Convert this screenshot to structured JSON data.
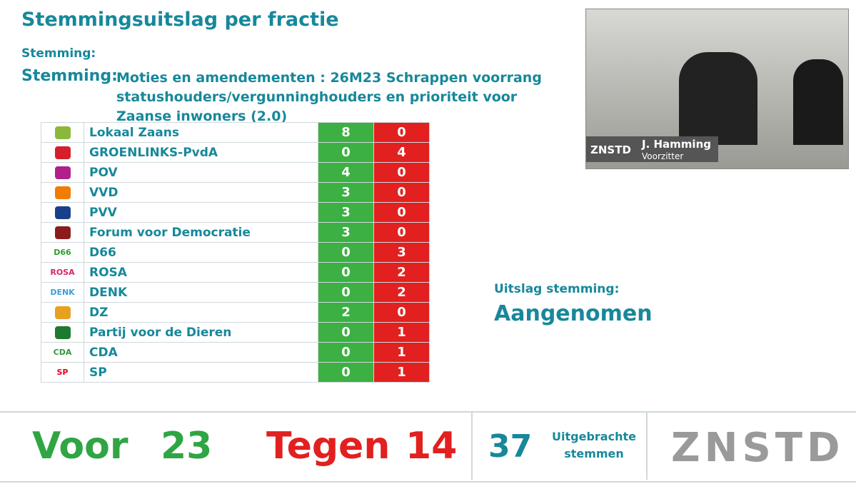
{
  "header": {
    "title": "Stemmingsuitslag per fractie",
    "label_small": "Stemming:",
    "label": "Stemming:",
    "subject": "Moties en amendementen : 26M23 Schrappen voorrang statushouders/vergunninghouders en prioriteit voor Zaanse inwoners (2.0)"
  },
  "table": {
    "rows": [
      {
        "party": "Lokaal Zaans",
        "voor": "8",
        "tegen": "0",
        "logo_color": "#8bb83a"
      },
      {
        "party": "GROENLINKS-PvdA",
        "voor": "0",
        "tegen": "4",
        "logo_color": "#d4202a"
      },
      {
        "party": "POV",
        "voor": "4",
        "tegen": "0",
        "logo_color": "#b0208a"
      },
      {
        "party": "VVD",
        "voor": "3",
        "tegen": "0",
        "logo_color": "#f07c00"
      },
      {
        "party": "PVV",
        "voor": "3",
        "tegen": "0",
        "logo_color": "#1a3f8a"
      },
      {
        "party": "Forum voor Democratie",
        "voor": "3",
        "tegen": "0",
        "logo_color": "#8b1c1c"
      },
      {
        "party": "D66",
        "voor": "0",
        "tegen": "3",
        "logo": "D66",
        "logo_color": "#2ca02c"
      },
      {
        "party": "ROSA",
        "voor": "0",
        "tegen": "2",
        "logo": "ROSA",
        "logo_color": "#d6246e"
      },
      {
        "party": "DENK",
        "voor": "0",
        "tegen": "2",
        "logo": "DENK",
        "logo_color": "#3aa0d8"
      },
      {
        "party": "DZ",
        "voor": "2",
        "tegen": "0",
        "logo_color": "#e8a020"
      },
      {
        "party": "Partij voor de Dieren",
        "voor": "0",
        "tegen": "1",
        "logo_color": "#1e7a2e"
      },
      {
        "party": "CDA",
        "voor": "0",
        "tegen": "1",
        "logo": "CDA",
        "logo_color": "#2e9a3c"
      },
      {
        "party": "SP",
        "voor": "0",
        "tegen": "1",
        "logo": "SP",
        "logo_color": "#e3001b"
      }
    ]
  },
  "result": {
    "label": "Uitslag stemming:",
    "value": "Aangenomen"
  },
  "footer": {
    "voor_label": "Voor",
    "voor": "23",
    "tegen_label": "Tegen",
    "tegen": "14",
    "total": "37",
    "total_label": "Uitgebrachte stemmen",
    "logo": "ZNSTD"
  },
  "video": {
    "logo": "ZNSTD",
    "name": "J. Hamming",
    "role": "Voorzitter"
  }
}
